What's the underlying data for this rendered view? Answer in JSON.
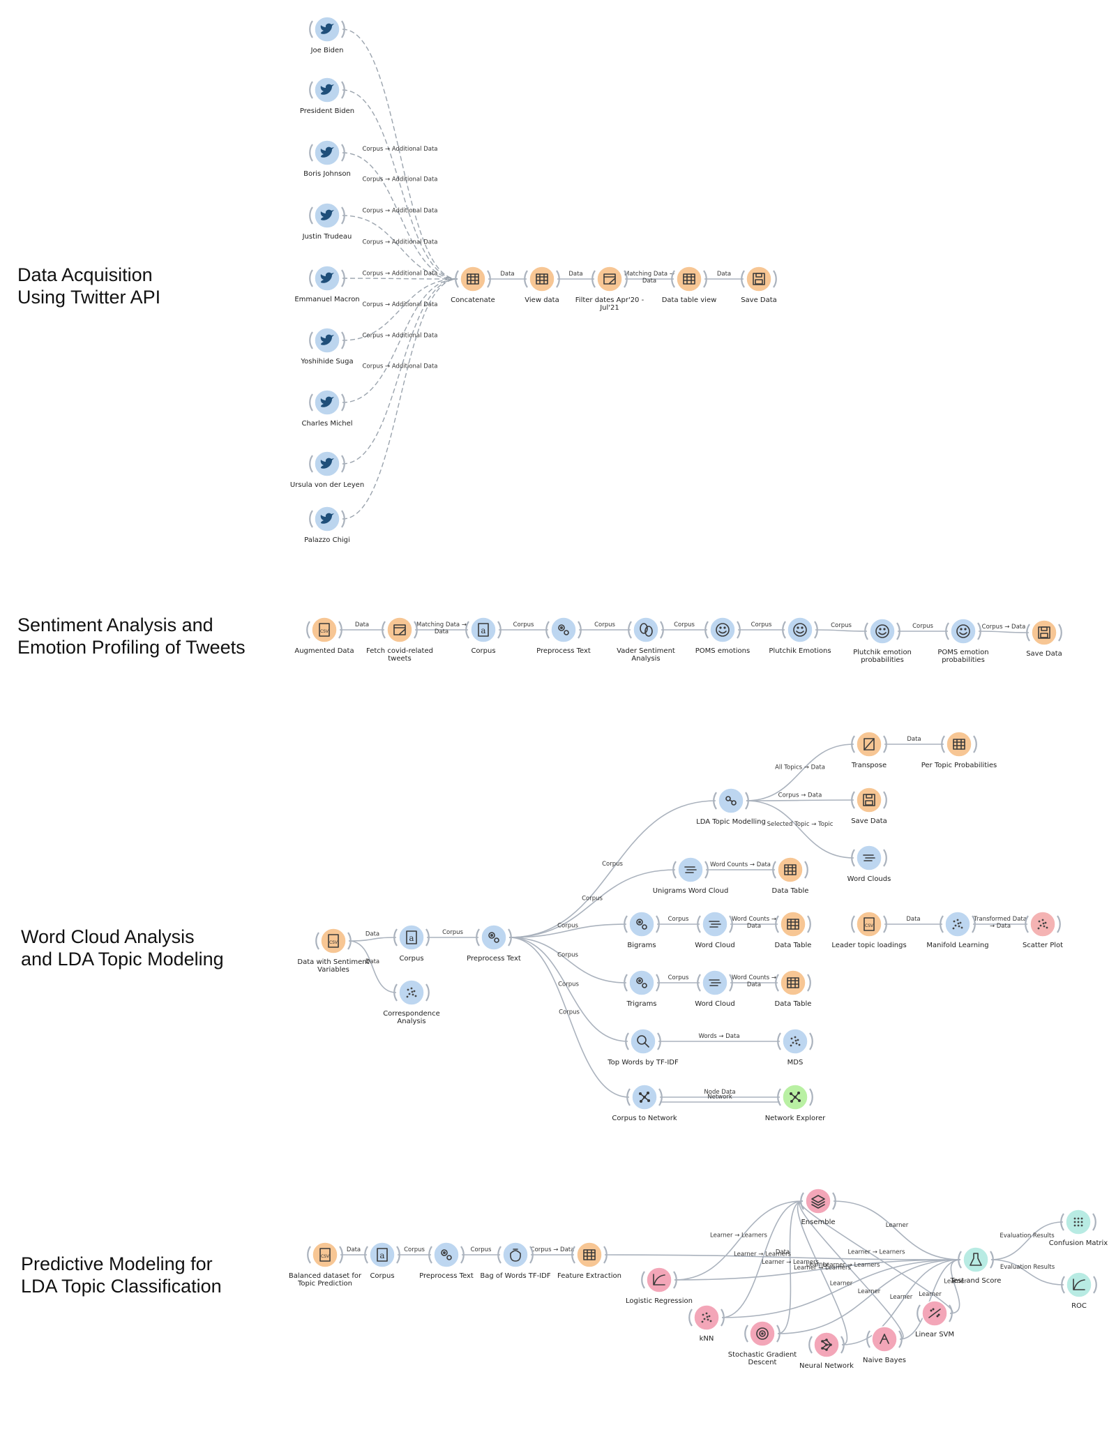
{
  "sections": [
    {
      "id": "acq",
      "title": "Data Acquisition\nUsing Twitter API"
    },
    {
      "id": "sent",
      "title": "Sentiment Analysis and\nEmotion Profiling of Tweets"
    },
    {
      "id": "wc",
      "title": "Word Cloud Analysis\nand LDA Topic Modeling"
    },
    {
      "id": "pred",
      "title": "Predictive Modeling for\nLDA Topic Classification"
    }
  ],
  "colors": {
    "data": "#f7c694",
    "text": "#bdd6f0",
    "viz": "#f4b3b3",
    "model": "#f3a6b8",
    "eval": "#b8ebe3",
    "net": "#b9f0a3",
    "twitter": "#bcd5ee"
  },
  "nodes": [
    {
      "id": "a1",
      "label": "Joe Biden",
      "icon": "twitter-icon",
      "color": "twitter"
    },
    {
      "id": "a2",
      "label": "President Biden",
      "icon": "twitter-icon",
      "color": "twitter"
    },
    {
      "id": "a3",
      "label": "Boris Johnson",
      "icon": "twitter-icon",
      "color": "twitter"
    },
    {
      "id": "a4",
      "label": "Justin Trudeau",
      "icon": "twitter-icon",
      "color": "twitter"
    },
    {
      "id": "a5",
      "label": "Emmanuel Macron",
      "icon": "twitter-icon",
      "color": "twitter"
    },
    {
      "id": "a6",
      "label": "Yoshihide Suga",
      "icon": "twitter-icon",
      "color": "twitter"
    },
    {
      "id": "a7",
      "label": "Charles Michel",
      "icon": "twitter-icon",
      "color": "twitter"
    },
    {
      "id": "a8",
      "label": "Ursula von der Leyen",
      "icon": "twitter-icon",
      "color": "twitter"
    },
    {
      "id": "a9",
      "label": "Palazzo Chigi",
      "icon": "twitter-icon",
      "color": "twitter"
    },
    {
      "id": "concat",
      "label": "Concatenate",
      "icon": "concatenate-icon",
      "color": "data"
    },
    {
      "id": "view",
      "label": "View data",
      "icon": "table-icon",
      "color": "data"
    },
    {
      "id": "filter",
      "label": "Filter dates Apr'20 -\nJul'21",
      "icon": "filter-icon",
      "color": "data"
    },
    {
      "id": "dtv",
      "label": "Data table view",
      "icon": "table-icon",
      "color": "data"
    },
    {
      "id": "save1",
      "label": "Save Data",
      "icon": "save-icon",
      "color": "data"
    },
    {
      "id": "aug",
      "label": "Augmented Data",
      "icon": "csv-icon",
      "color": "data"
    },
    {
      "id": "fetch",
      "label": "Fetch covid-related\ntweets",
      "icon": "filter-icon",
      "color": "data"
    },
    {
      "id": "corp2",
      "label": "Corpus",
      "icon": "corpus-icon",
      "color": "text"
    },
    {
      "id": "pre2",
      "label": "Preprocess Text",
      "icon": "gears-icon",
      "color": "text"
    },
    {
      "id": "vader",
      "label": "Vader Sentiment\nAnalysis",
      "icon": "masks-icon",
      "color": "text"
    },
    {
      "id": "poms",
      "label": "POMS emotions",
      "icon": "smiley-icon",
      "color": "text"
    },
    {
      "id": "plut",
      "label": "Plutchik Emotions",
      "icon": "smiley-icon",
      "color": "text"
    },
    {
      "id": "plutp",
      "label": "Plutchik emotion\nprobabilities",
      "icon": "smiley-icon",
      "color": "text"
    },
    {
      "id": "pomsp",
      "label": "POMS emotion\nprobabilities",
      "icon": "smiley-icon",
      "color": "text"
    },
    {
      "id": "save2",
      "label": "Save Data",
      "icon": "save-icon",
      "color": "data"
    },
    {
      "id": "dws",
      "label": "Data with Sentiment\nVariables",
      "icon": "csv-icon",
      "color": "data"
    },
    {
      "id": "corp3",
      "label": "Corpus",
      "icon": "corpus-icon",
      "color": "text"
    },
    {
      "id": "corr",
      "label": "Correspondence\nAnalysis",
      "icon": "scatter-icon",
      "color": "text"
    },
    {
      "id": "pre3",
      "label": "Preprocess Text",
      "icon": "gears-icon",
      "color": "text"
    },
    {
      "id": "lda",
      "label": "LDA Topic Modelling",
      "icon": "topic-icon",
      "color": "text"
    },
    {
      "id": "transp",
      "label": "Transpose",
      "icon": "transpose-icon",
      "color": "data"
    },
    {
      "id": "ptp",
      "label": "Per Topic Probabilities",
      "icon": "table-icon",
      "color": "data"
    },
    {
      "id": "save3",
      "label": "Save Data",
      "icon": "save-icon",
      "color": "data"
    },
    {
      "id": "wcl",
      "label": "Word Clouds",
      "icon": "wordcloud-icon",
      "color": "text"
    },
    {
      "id": "uwc",
      "label": "Unigrams Word Cloud",
      "icon": "wordcloud-icon",
      "color": "text"
    },
    {
      "id": "dt1",
      "label": "Data Table",
      "icon": "table-icon",
      "color": "data"
    },
    {
      "id": "big",
      "label": "Bigrams",
      "icon": "gears-icon",
      "color": "text"
    },
    {
      "id": "wc2",
      "label": "Word Cloud",
      "icon": "wordcloud-icon",
      "color": "text"
    },
    {
      "id": "dt2",
      "label": "Data Table",
      "icon": "table-icon",
      "color": "data"
    },
    {
      "id": "tri",
      "label": "Trigrams",
      "icon": "gears-icon",
      "color": "text"
    },
    {
      "id": "wc3",
      "label": "Word Cloud",
      "icon": "wordcloud-icon",
      "color": "text"
    },
    {
      "id": "dt3",
      "label": "Data Table",
      "icon": "table-icon",
      "color": "data"
    },
    {
      "id": "tfidf",
      "label": "Top Words by TF-IDF",
      "icon": "magnifier-icon",
      "color": "text"
    },
    {
      "id": "mds",
      "label": "MDS",
      "icon": "scatter-icon",
      "color": "text"
    },
    {
      "id": "c2n",
      "label": "Corpus to Network",
      "icon": "network-icon",
      "color": "text"
    },
    {
      "id": "nex",
      "label": "Network Explorer",
      "icon": "network-icon",
      "color": "net"
    },
    {
      "id": "ltl",
      "label": "Leader topic loadings",
      "icon": "csv-icon",
      "color": "data"
    },
    {
      "id": "ml",
      "label": "Manifold Learning",
      "icon": "scatter-icon",
      "color": "text"
    },
    {
      "id": "sp",
      "label": "Scatter Plot",
      "icon": "scatter-icon",
      "color": "viz"
    },
    {
      "id": "bal",
      "label": "Balanced dataset for\nTopic Prediction",
      "icon": "csv-icon",
      "color": "data"
    },
    {
      "id": "corp4",
      "label": "Corpus",
      "icon": "corpus-icon",
      "color": "text"
    },
    {
      "id": "pre4",
      "label": "Preprocess Text",
      "icon": "gears-icon",
      "color": "text"
    },
    {
      "id": "bow",
      "label": "Bag of Words TF-IDF",
      "icon": "bag-icon",
      "color": "text"
    },
    {
      "id": "fe",
      "label": "Feature Extraction",
      "icon": "table-icon",
      "color": "data"
    },
    {
      "id": "ens",
      "label": "Ensemble",
      "icon": "layers-icon",
      "color": "model"
    },
    {
      "id": "lr",
      "label": "Logistic Regression",
      "icon": "curve-icon",
      "color": "model"
    },
    {
      "id": "knn",
      "label": "kNN",
      "icon": "scatter-icon",
      "color": "model"
    },
    {
      "id": "sgd",
      "label": "Stochastic Gradient\nDescent",
      "icon": "target-icon",
      "color": "model"
    },
    {
      "id": "nn",
      "label": "Neural Network",
      "icon": "neural-icon",
      "color": "model"
    },
    {
      "id": "nb",
      "label": "Naive Bayes",
      "icon": "tree-icon",
      "color": "model"
    },
    {
      "id": "svm",
      "label": "Linear SVM",
      "icon": "svm-icon",
      "color": "model"
    },
    {
      "id": "ts",
      "label": "Test and Score",
      "icon": "flask-icon",
      "color": "eval"
    },
    {
      "id": "cm",
      "label": "Confusion Matrix",
      "icon": "matrix-icon",
      "color": "eval"
    },
    {
      "id": "roc",
      "label": "ROC",
      "icon": "curve-icon",
      "color": "eval"
    }
  ],
  "links": [
    {
      "from": "a1",
      "to": "concat",
      "label": "Corpus → Additional Data"
    },
    {
      "from": "a2",
      "to": "concat",
      "label": "Corpus → Additional Data"
    },
    {
      "from": "a3",
      "to": "concat",
      "label": "Corpus → Additional Data"
    },
    {
      "from": "a4",
      "to": "concat",
      "label": "Corpus → Additional Data"
    },
    {
      "from": "a5",
      "to": "concat",
      "label": "Corpus → Additional Data"
    },
    {
      "from": "a6",
      "to": "concat",
      "label": "Corpus → Additional Data"
    },
    {
      "from": "a7",
      "to": "concat",
      "label": "Corpus → Additional Data"
    },
    {
      "from": "a8",
      "to": "concat",
      "label": "Corpus → Additional Data"
    },
    {
      "from": "a9",
      "to": "concat",
      "label": ""
    },
    {
      "from": "concat",
      "to": "view",
      "label": "Data"
    },
    {
      "from": "view",
      "to": "filter",
      "label": "Data"
    },
    {
      "from": "filter",
      "to": "dtv",
      "label": "Matching Data →\nData"
    },
    {
      "from": "dtv",
      "to": "save1",
      "label": "Data"
    },
    {
      "from": "aug",
      "to": "fetch",
      "label": "Data"
    },
    {
      "from": "fetch",
      "to": "corp2",
      "label": "Matching Data →\nData"
    },
    {
      "from": "corp2",
      "to": "pre2",
      "label": "Corpus"
    },
    {
      "from": "pre2",
      "to": "vader",
      "label": "Corpus"
    },
    {
      "from": "vader",
      "to": "poms",
      "label": "Corpus"
    },
    {
      "from": "poms",
      "to": "plut",
      "label": "Corpus"
    },
    {
      "from": "plut",
      "to": "plutp",
      "label": "Corpus"
    },
    {
      "from": "plutp",
      "to": "pomsp",
      "label": "Corpus"
    },
    {
      "from": "pomsp",
      "to": "save2",
      "label": "Corpus → Data"
    },
    {
      "from": "dws",
      "to": "corp3",
      "label": "Data"
    },
    {
      "from": "dws",
      "to": "corr",
      "label": "Data"
    },
    {
      "from": "corp3",
      "to": "pre3",
      "label": "Corpus"
    },
    {
      "from": "pre3",
      "to": "lda",
      "label": "Corpus"
    },
    {
      "from": "pre3",
      "to": "uwc",
      "label": "Corpus"
    },
    {
      "from": "pre3",
      "to": "big",
      "label": "Corpus"
    },
    {
      "from": "pre3",
      "to": "tri",
      "label": "Corpus"
    },
    {
      "from": "pre3",
      "to": "tfidf",
      "label": "Corpus"
    },
    {
      "from": "pre3",
      "to": "c2n",
      "label": "Corpus"
    },
    {
      "from": "lda",
      "to": "transp",
      "label": "All Topics → Data"
    },
    {
      "from": "lda",
      "to": "save3",
      "label": "Corpus → Data"
    },
    {
      "from": "lda",
      "to": "wcl",
      "label": "Selected Topic → Topic"
    },
    {
      "from": "transp",
      "to": "ptp",
      "label": "Data"
    },
    {
      "from": "uwc",
      "to": "dt1",
      "label": "Word Counts → Data"
    },
    {
      "from": "big",
      "to": "wc2",
      "label": "Corpus"
    },
    {
      "from": "wc2",
      "to": "dt2",
      "label": "Word Counts →\nData"
    },
    {
      "from": "tri",
      "to": "wc3",
      "label": "Corpus"
    },
    {
      "from": "wc3",
      "to": "dt3",
      "label": "Word Counts →\nData"
    },
    {
      "from": "tfidf",
      "to": "mds",
      "label": "Words → Data"
    },
    {
      "from": "c2n",
      "to": "nex",
      "label": "Node Data"
    },
    {
      "from": "c2n",
      "to": "nex",
      "label": "Network"
    },
    {
      "from": "ltl",
      "to": "ml",
      "label": "Data"
    },
    {
      "from": "ml",
      "to": "sp",
      "label": "Transformed Data\n→ Data"
    },
    {
      "from": "bal",
      "to": "corp4",
      "label": "Data"
    },
    {
      "from": "corp4",
      "to": "pre4",
      "label": "Corpus"
    },
    {
      "from": "pre4",
      "to": "bow",
      "label": "Corpus"
    },
    {
      "from": "bow",
      "to": "fe",
      "label": "Corpus → Data"
    },
    {
      "from": "fe",
      "to": "ts",
      "label": "Data"
    },
    {
      "from": "lr",
      "to": "ens",
      "label": "Learner → Learners"
    },
    {
      "from": "knn",
      "to": "ens",
      "label": "Learner → Learners"
    },
    {
      "from": "sgd",
      "to": "ens",
      "label": "Learner → Learners"
    },
    {
      "from": "nn",
      "to": "ens",
      "label": "Learner → Learners"
    },
    {
      "from": "nb",
      "to": "ens",
      "label": "Learner → Learners"
    },
    {
      "from": "svm",
      "to": "ens",
      "label": "Learner → Learners"
    },
    {
      "from": "ens",
      "to": "ts",
      "label": "Learner"
    },
    {
      "from": "lr",
      "to": "ts",
      "label": "Learner"
    },
    {
      "from": "knn",
      "to": "ts",
      "label": "Learner"
    },
    {
      "from": "sgd",
      "to": "ts",
      "label": "Learner"
    },
    {
      "from": "nn",
      "to": "ts",
      "label": "Learner"
    },
    {
      "from": "nb",
      "to": "ts",
      "label": "Learner"
    },
    {
      "from": "svm",
      "to": "ts",
      "label": "Learner"
    },
    {
      "from": "ts",
      "to": "cm",
      "label": "Evaluation Results"
    },
    {
      "from": "ts",
      "to": "roc",
      "label": "Evaluation Results"
    }
  ]
}
